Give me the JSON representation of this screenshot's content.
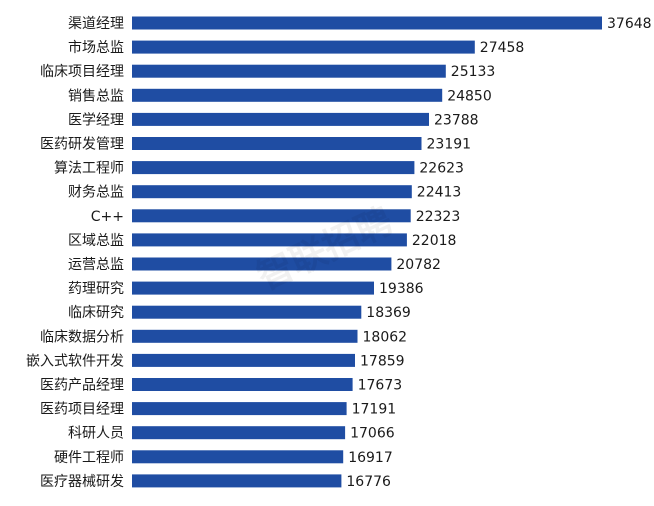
{
  "chart_data": {
    "type": "bar",
    "orientation": "horizontal",
    "categories": [
      "渠道经理",
      "市场总监",
      "临床项目经理",
      "销售总监",
      "医学经理",
      "医药研发管理",
      "算法工程师",
      "财务总监",
      "C++",
      "区域总监",
      "运营总监",
      "药理研究",
      "临床研究",
      "临床数据分析",
      "嵌入式软件开发",
      "医药产品经理",
      "医药项目经理",
      "科研人员",
      "硬件工程师",
      "医疗器械研发"
    ],
    "values": [
      37648,
      27458,
      25133,
      24850,
      23788,
      23191,
      22623,
      22413,
      22323,
      22018,
      20782,
      19386,
      18369,
      18062,
      17859,
      17673,
      17191,
      17066,
      16917,
      16776
    ],
    "bar_color": "#1f4da3",
    "xlim": [
      0,
      37648
    ],
    "grid": false,
    "data_labels": true,
    "watermark": "智联招聘"
  }
}
